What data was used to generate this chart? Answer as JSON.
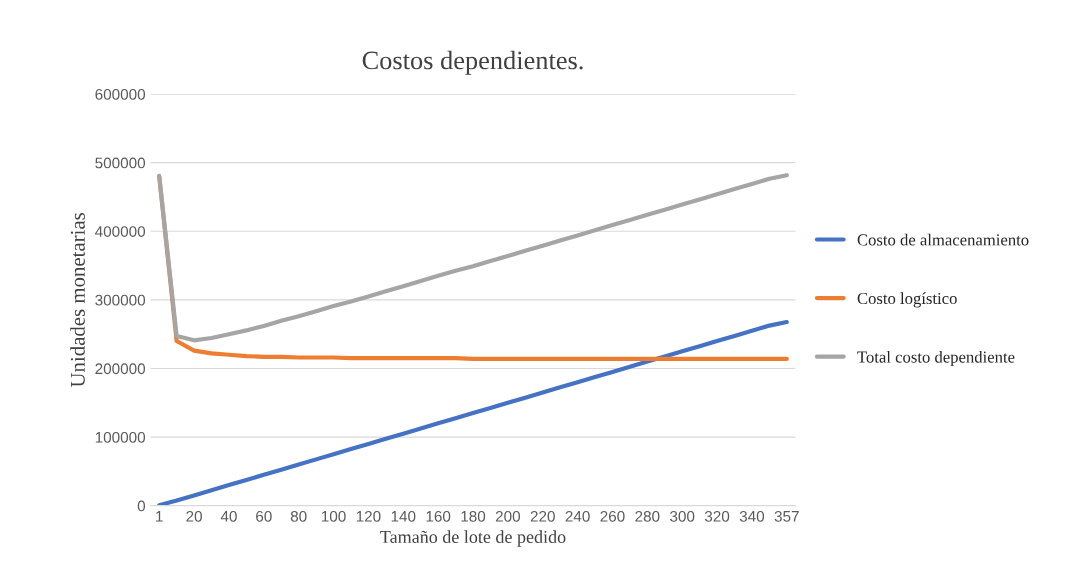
{
  "chart_data": {
    "type": "line",
    "title": "Costos dependientes.",
    "xlabel": "Tamaño de lote de pedido",
    "ylabel": "Unidades monetarias",
    "categories": [
      "1",
      null,
      "20",
      null,
      "40",
      null,
      "60",
      null,
      "80",
      null,
      "100",
      null,
      "120",
      null,
      "140",
      null,
      "160",
      null,
      "180",
      null,
      "200",
      null,
      "220",
      null,
      "240",
      null,
      "260",
      null,
      "280",
      null,
      "300",
      null,
      "320",
      null,
      "340",
      null,
      "357"
    ],
    "series": [
      {
        "name": "Costo de almacenamiento",
        "color": "#4472c4",
        "values": [
          750,
          7500,
          15000,
          22500,
          30000,
          37500,
          45000,
          52500,
          60000,
          67500,
          75000,
          82500,
          90000,
          97500,
          105000,
          112500,
          120000,
          127500,
          135000,
          142500,
          150000,
          157500,
          165000,
          172500,
          180000,
          187500,
          195000,
          202500,
          210000,
          217500,
          225000,
          232500,
          240000,
          247500,
          255000,
          262500,
          267750
        ]
      },
      {
        "name": "Costo logístico",
        "color": "#ed7d31",
        "values": [
          480000,
          240000,
          226000,
          222000,
          220000,
          218000,
          217000,
          217000,
          216000,
          216000,
          216000,
          215000,
          215000,
          215000,
          215000,
          215000,
          215000,
          215000,
          214000,
          214000,
          214000,
          214000,
          214000,
          214000,
          214000,
          214000,
          214000,
          214000,
          214000,
          214000,
          214000,
          214000,
          214000,
          214000,
          214000,
          214000,
          214000
        ]
      },
      {
        "name": "Total costo dependiente",
        "color": "#a5a5a5",
        "values": [
          480750,
          247500,
          241000,
          244500,
          250000,
          255500,
          262000,
          269500,
          276000,
          283500,
          291000,
          297500,
          305000,
          312500,
          320000,
          327500,
          335000,
          342500,
          349000,
          356500,
          364000,
          371500,
          379000,
          386500,
          394000,
          401500,
          409000,
          416500,
          424000,
          431500,
          439000,
          446500,
          454000,
          461500,
          469000,
          476500,
          481750
        ]
      }
    ],
    "ylim": [
      0,
      600000
    ],
    "yticks": [
      0,
      100000,
      200000,
      300000,
      400000,
      500000,
      600000
    ],
    "grid": "y",
    "legend": "right",
    "marker": "none",
    "line_style": "solid"
  }
}
